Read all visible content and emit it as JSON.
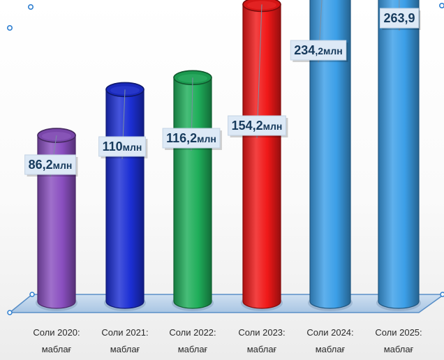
{
  "chart_data": {
    "type": "bar",
    "style": "3d-cylinder",
    "categories": [
      [
        "Соли 2020:",
        "маблағ"
      ],
      [
        "Соли 2021:",
        "маблағ"
      ],
      [
        "Соли 2022:",
        "маблағ"
      ],
      [
        "Соли 2023:",
        "маблағ"
      ],
      [
        "Соли 2024:",
        "маблағ"
      ],
      [
        "Соли 2025:",
        "маблағ"
      ]
    ],
    "values": [
      86.2,
      110,
      116.2,
      154.2,
      234.2,
      263.9
    ],
    "value_labels": [
      {
        "main": "86,2",
        "suffix": "млн"
      },
      {
        "main": "110",
        "suffix": "млн"
      },
      {
        "main": "116,2",
        "suffix": "млн"
      },
      {
        "main": "154,2",
        "suffix": "млн"
      },
      {
        "main": "234",
        "suffix": ",2млн"
      },
      {
        "main": "263,9",
        "suffix": ""
      }
    ],
    "colors": [
      "#8a4fc0",
      "#1c2fd4",
      "#1fae5a",
      "#f01818",
      "#3c9fe8",
      "#3c9fe8"
    ],
    "ylim": [
      0,
      280
    ],
    "title": "",
    "xlabel": "",
    "ylabel": ""
  }
}
